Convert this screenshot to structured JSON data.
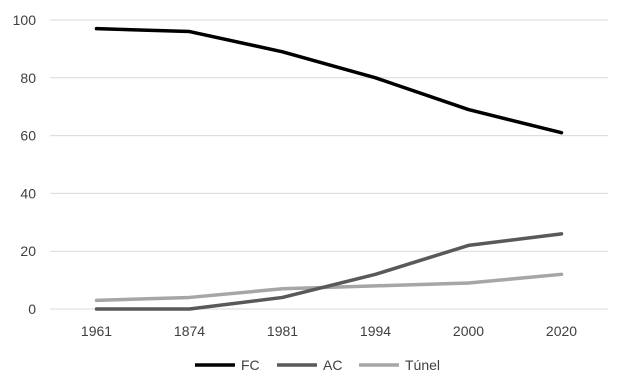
{
  "chart_data": {
    "type": "line",
    "categories": [
      "1961",
      "1874",
      "1981",
      "1994",
      "2000",
      "2020"
    ],
    "ylim": [
      0,
      100
    ],
    "yticks": [
      0,
      20,
      40,
      60,
      80,
      100
    ],
    "grid": true,
    "legend_position": "bottom",
    "series": [
      {
        "name": "FC",
        "values": [
          97,
          96,
          89,
          80,
          69,
          61
        ],
        "color": "#000000"
      },
      {
        "name": "AC",
        "values": [
          0,
          0,
          4,
          12,
          22,
          26
        ],
        "color": "#595959"
      },
      {
        "name": "Túnel",
        "values": [
          3,
          4,
          7,
          8,
          9,
          12
        ],
        "color": "#a6a6a6"
      }
    ]
  }
}
